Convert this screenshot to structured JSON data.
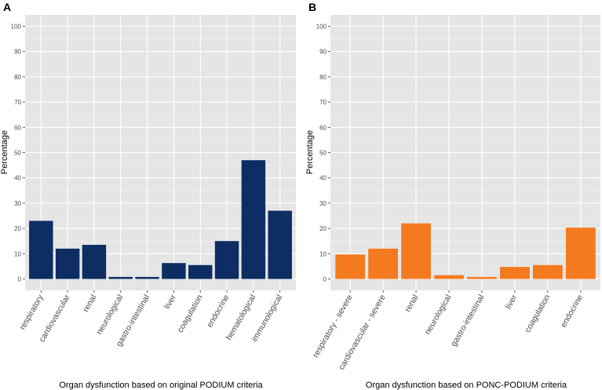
{
  "chart_data": [
    {
      "type": "bar",
      "panel_label": "A",
      "title": "",
      "xlabel": "Organ dysfunction based on original PODIUM criteria",
      "ylabel": "Percentage",
      "ylim": [
        0,
        100
      ],
      "yticks": [
        0,
        10,
        20,
        30,
        40,
        50,
        60,
        70,
        80,
        90,
        100
      ],
      "grid": true,
      "categories": [
        "respiratory",
        "cardiovascular",
        "renal",
        "neurological",
        "gastro-intestinal",
        "liver",
        "coagulation",
        "endocrine",
        "hematological",
        "immunological"
      ],
      "values": [
        23,
        12,
        13.5,
        0.8,
        0.8,
        6.3,
        5.5,
        15,
        47,
        27
      ],
      "color": "#0d2d63"
    },
    {
      "type": "bar",
      "panel_label": "B",
      "title": "",
      "xlabel": "Organ dysfunction based on PONC-PODIUM criteria",
      "ylabel": "Percentage",
      "ylim": [
        0,
        100
      ],
      "yticks": [
        0,
        10,
        20,
        30,
        40,
        50,
        60,
        70,
        80,
        90,
        100
      ],
      "grid": true,
      "categories": [
        "respiratory - severe",
        "cardiovascular - severe",
        "renal",
        "neurological",
        "gastro-intestinal",
        "liver",
        "coagulation",
        "endocrine"
      ],
      "values": [
        9.7,
        12,
        22,
        1.5,
        0.8,
        4.8,
        5.5,
        20.3
      ],
      "color": "#f47a20"
    }
  ]
}
